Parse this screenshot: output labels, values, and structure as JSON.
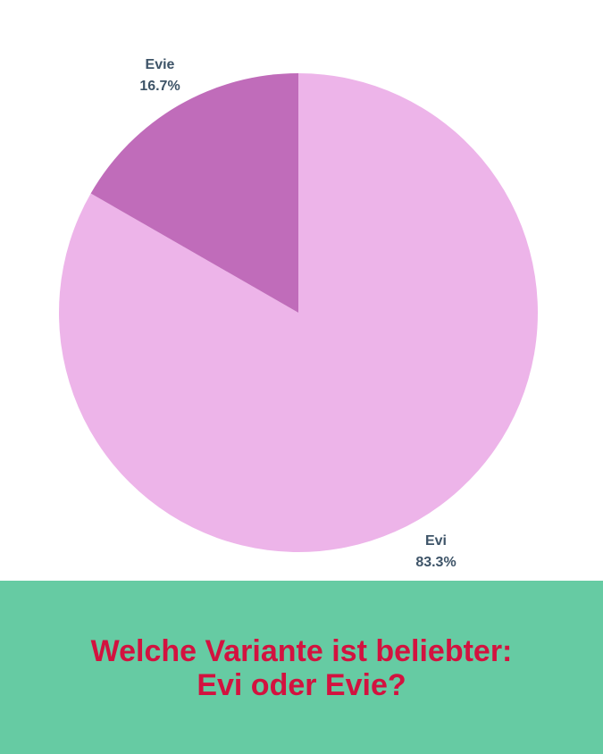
{
  "chart_data": {
    "type": "pie",
    "start_angle_deg": 0,
    "direction": "clockwise",
    "slices": [
      {
        "label": "Evi",
        "value": 83.3,
        "percent_label": "83.3%",
        "color": "#edb4e9"
      },
      {
        "label": "Evie",
        "value": 16.7,
        "percent_label": "16.7%",
        "color": "#c06cba"
      }
    ]
  },
  "footer": {
    "title_line1": "Welche Variante ist beliebter:",
    "title_line2": "Evi oder Evie?",
    "background": "#66cba3",
    "text_color": "#d3123f"
  }
}
